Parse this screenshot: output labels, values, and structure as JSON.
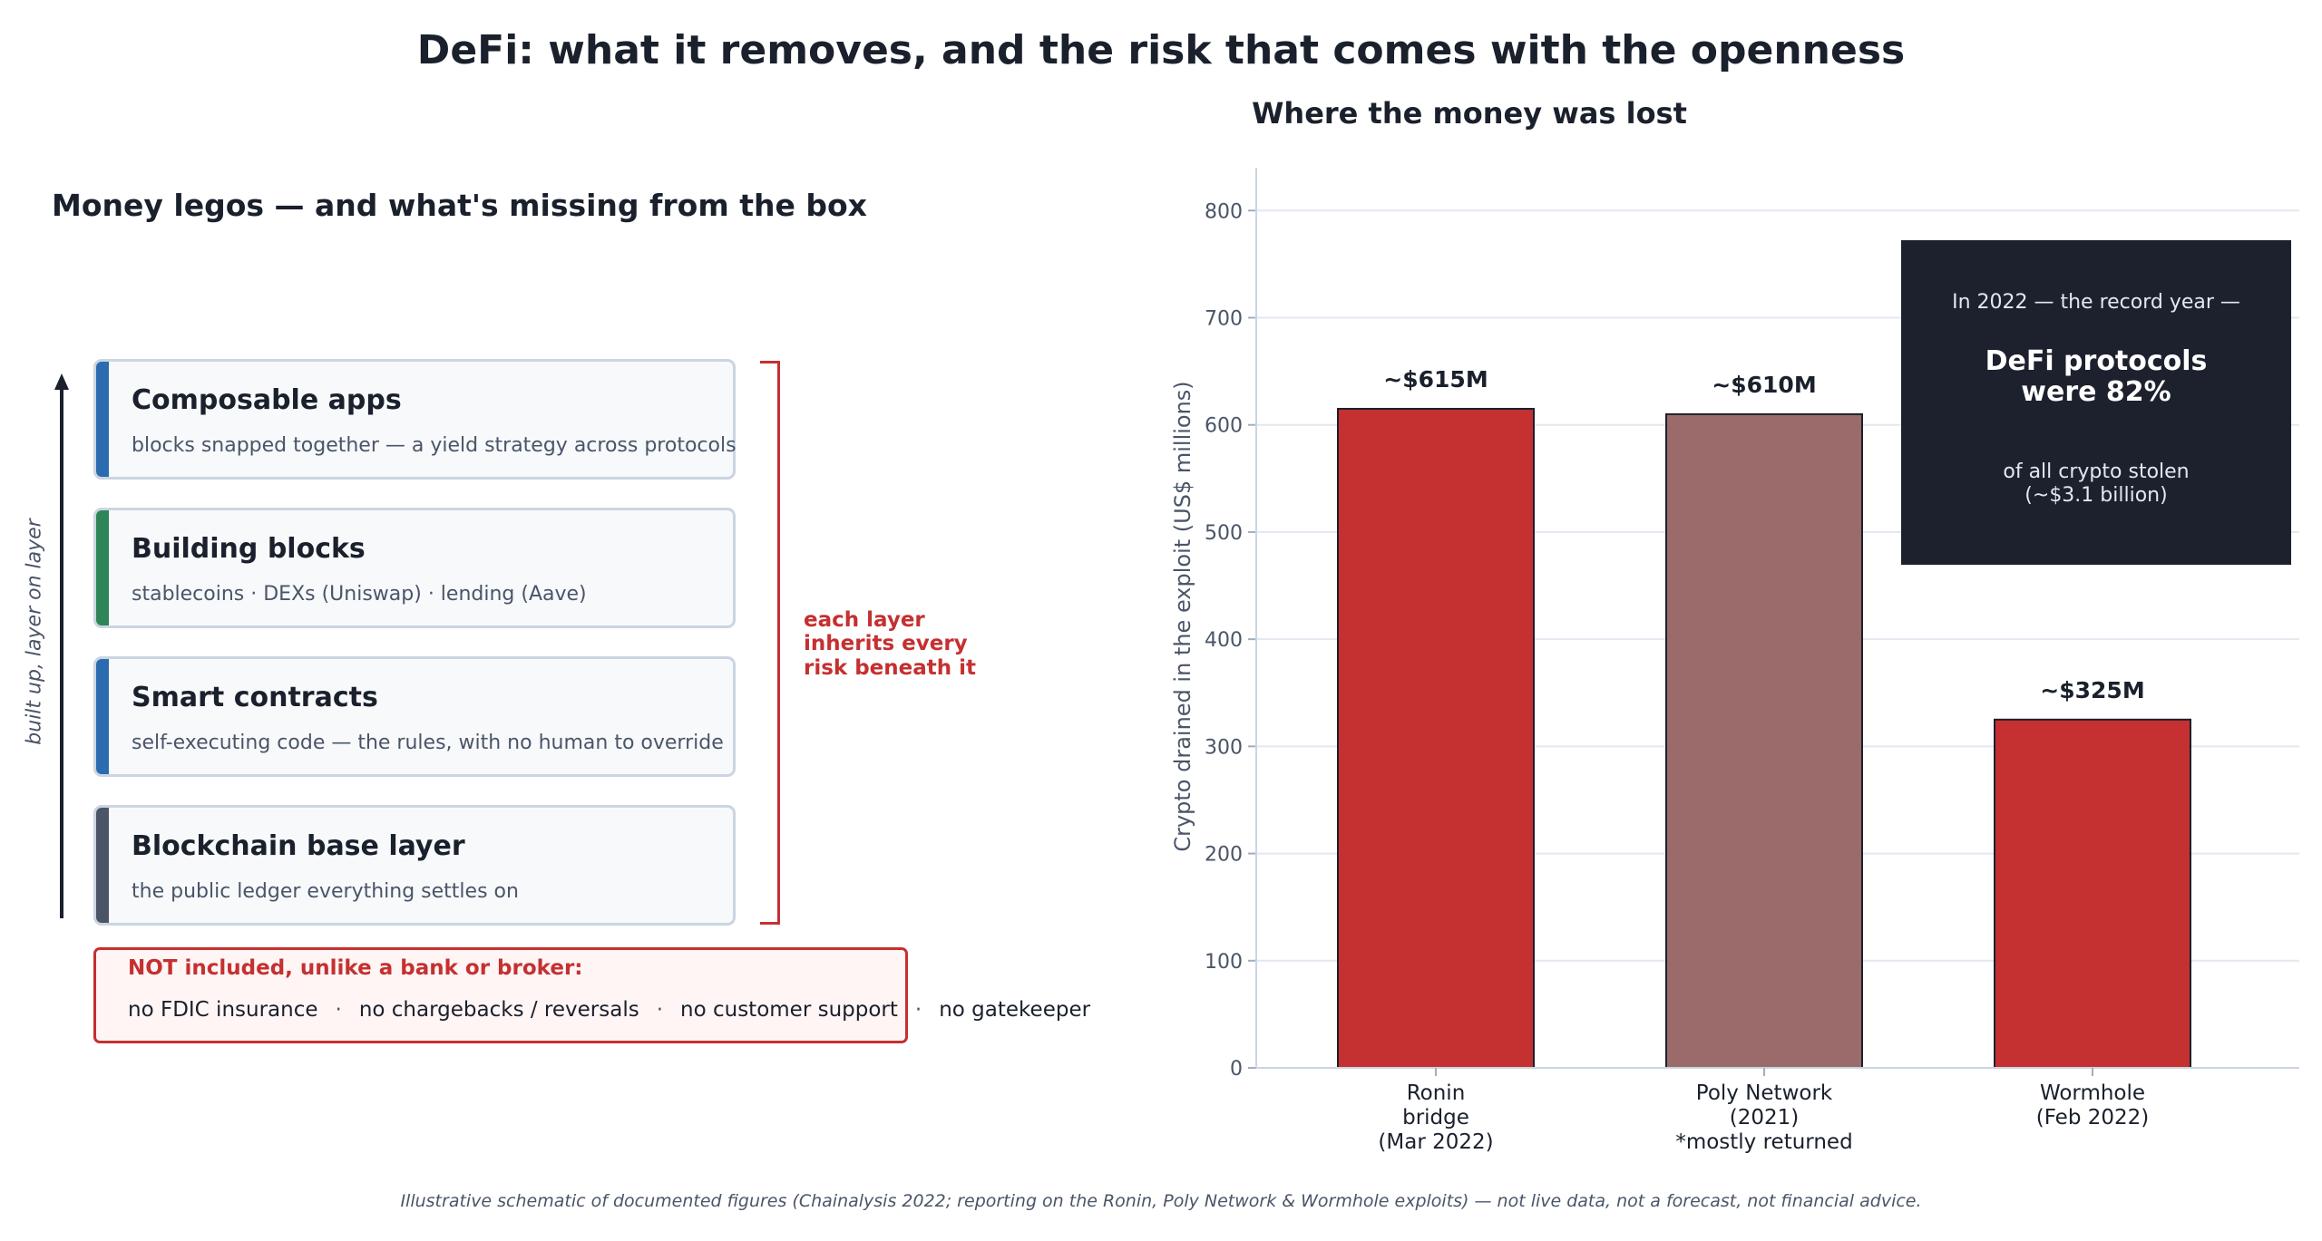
{
  "title": "DeFi: what it removes, and the risk that comes with the openness",
  "left_panel": {
    "title": "Money legos — and what's missing from the box",
    "side_label": "built up, layer on layer",
    "layers": [
      {
        "title": "Composable apps",
        "description": "blocks snapped together — a yield strategy across protocols",
        "color": "#2b6cb0"
      },
      {
        "title": "Building blocks",
        "description": "stablecoins  ·  DEXs (Uniswap)  ·  lending (Aave)",
        "color": "#2f855a"
      },
      {
        "title": "Smart contracts",
        "description": "self-executing code — the rules, with no human to override",
        "color": "#2b6cb0"
      },
      {
        "title": "Blockchain base layer",
        "description": "the public ledger everything settles on",
        "color": "#4a5568"
      }
    ],
    "bracket_note": "each layer inherits every risk beneath it",
    "not_included": {
      "title": "NOT included, unlike a bank or broker:",
      "items": [
        "no FDIC insurance",
        "no chargebacks / reversals",
        "no customer support",
        "no gatekeeper"
      ]
    }
  },
  "chart_data": {
    "type": "bar",
    "title": "Where the money was lost",
    "ylabel": "Crypto drained in the exploit  (US$ millions)",
    "ylim": [
      0,
      840
    ],
    "yticks": [
      0,
      100,
      200,
      300,
      400,
      500,
      600,
      700,
      800
    ],
    "grid": true,
    "categories": [
      [
        "Ronin",
        "bridge",
        "(Mar 2022)"
      ],
      [
        "Poly Network",
        "(2021)",
        "*mostly returned"
      ],
      [
        "Wormhole",
        "(Feb 2022)"
      ]
    ],
    "values": [
      615,
      610,
      325
    ],
    "data_labels": [
      "~$615M",
      "~$610M",
      "~$325M"
    ],
    "colors": [
      "#c53030",
      "#9b6a6a",
      "#c53030"
    ],
    "callout": {
      "line1": "In 2022 — the record year —",
      "headline": [
        "DeFi protocols",
        "were 82%"
      ],
      "line2": [
        "of all crypto stolen",
        "(~$3.1 billion)"
      ]
    }
  },
  "footnote": "Illustrative schematic of documented figures (Chainalysis 2022; reporting on the Ronin, Poly Network & Wormhole exploits) — not live data, not a forecast, not financial advice.",
  "colors": {
    "accent_red": "#c53030",
    "ink": "#1a202c",
    "muted": "#4a5568",
    "callout_bg": "#1c212d"
  }
}
